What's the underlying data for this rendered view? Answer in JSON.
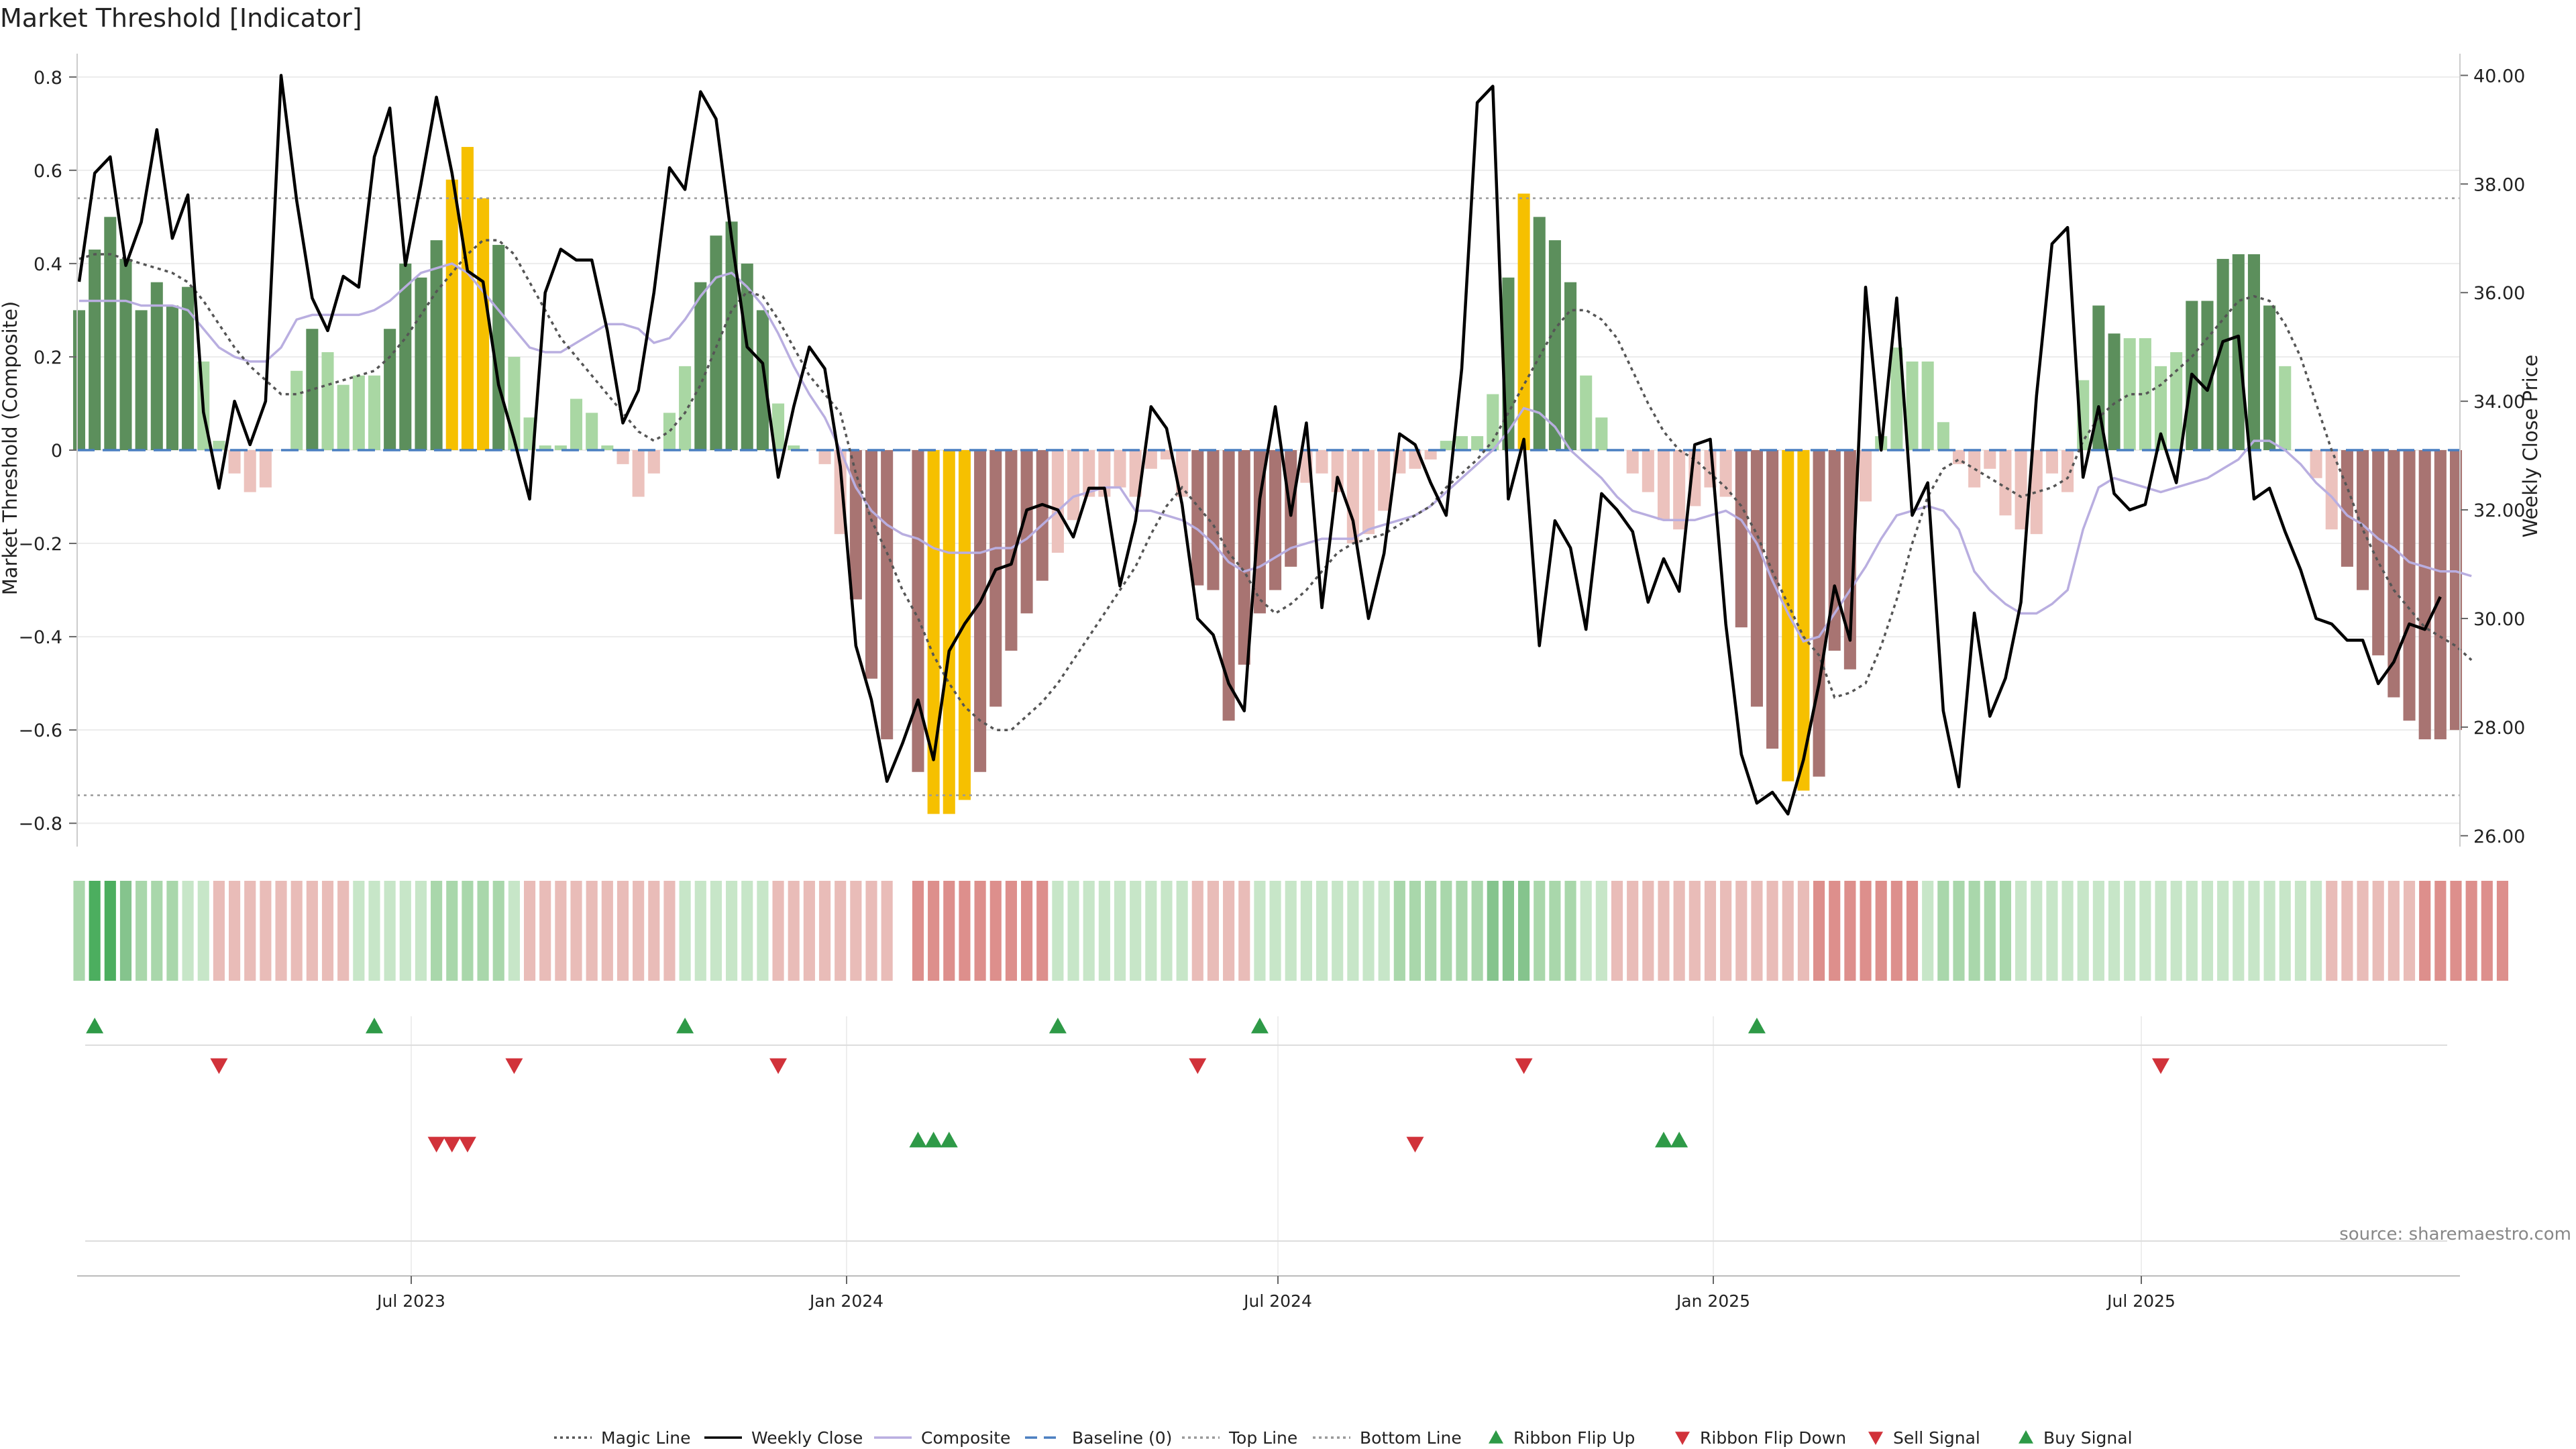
{
  "chart_data": {
    "type": "bar",
    "title": "Market Threshold [Indicator]",
    "ylabel": "Market Threshold (Composite)",
    "y2label": "Weekly Close Price",
    "ylim": [
      -0.85,
      0.85
    ],
    "y2lim": [
      25.8,
      40.4
    ],
    "yticks": [
      "0.8",
      "0.6",
      "0.4",
      "0.2",
      "0",
      "−0.2",
      "−0.4",
      "−0.6",
      "−0.8"
    ],
    "y2ticks": [
      "40.00",
      "38.00",
      "36.00",
      "34.00",
      "32.00",
      "30.00",
      "28.00",
      "26.00"
    ],
    "xticks": [
      "Jul 2023",
      "Jan 2024",
      "Jul 2024",
      "Jan 2025",
      "Jul 2025"
    ],
    "top_line": 0.54,
    "bottom_line": -0.74,
    "source": "source: sharemaestro.com",
    "legend": [
      {
        "label": "Magic Line",
        "kind": "dotted",
        "color": "#555555"
      },
      {
        "label": "Weekly Close",
        "kind": "solid",
        "color": "#000000"
      },
      {
        "label": "Composite",
        "kind": "solid",
        "color": "#b9aee0"
      },
      {
        "label": "Baseline (0)",
        "kind": "dashed",
        "color": "#4a7fc1"
      },
      {
        "label": "Top Line",
        "kind": "dotted",
        "color": "#999999"
      },
      {
        "label": "Bottom Line",
        "kind": "dotted",
        "color": "#999999"
      },
      {
        "label": "Ribbon Flip Up",
        "kind": "tri-up",
        "color": "#2e9a47"
      },
      {
        "label": "Ribbon Flip Down",
        "kind": "tri-down",
        "color": "#d1323a"
      },
      {
        "label": "Sell Signal",
        "kind": "tri-down",
        "color": "#d1323a"
      },
      {
        "label": "Buy Signal",
        "kind": "tri-up",
        "color": "#2e9a47"
      }
    ],
    "composite_bars": [
      0.3,
      0.43,
      0.5,
      0.41,
      0.3,
      0.36,
      0.31,
      0.35,
      0.19,
      0.02,
      -0.05,
      -0.09,
      -0.08,
      0.0,
      0.17,
      0.26,
      0.21,
      0.14,
      0.16,
      0.16,
      0.26,
      0.4,
      0.37,
      0.45,
      0.58,
      0.65,
      0.54,
      0.44,
      0.2,
      0.07,
      0.01,
      0.01,
      0.11,
      0.08,
      0.01,
      -0.03,
      -0.1,
      -0.05,
      0.08,
      0.18,
      0.36,
      0.46,
      0.49,
      0.4,
      0.3,
      0.1,
      0.01,
      0.0,
      -0.03,
      -0.18,
      -0.32,
      -0.49,
      -0.62,
      0.0,
      -0.69,
      -0.78,
      -0.78,
      -0.75,
      -0.69,
      -0.55,
      -0.43,
      -0.35,
      -0.28,
      -0.22,
      -0.15,
      -0.1,
      -0.1,
      -0.08,
      -0.1,
      -0.04,
      -0.02,
      -0.1,
      -0.29,
      -0.3,
      -0.58,
      -0.46,
      -0.35,
      -0.3,
      -0.25,
      -0.07,
      -0.05,
      -0.09,
      -0.2,
      -0.18,
      -0.13,
      -0.05,
      -0.04,
      -0.02,
      0.02,
      0.03,
      0.03,
      0.12,
      0.37,
      0.55,
      0.5,
      0.45,
      0.36,
      0.16,
      0.07,
      0.0,
      -0.05,
      -0.09,
      -0.15,
      -0.17,
      -0.12,
      -0.08,
      -0.1,
      -0.38,
      -0.55,
      -0.64,
      -0.71,
      -0.73,
      -0.7,
      -0.43,
      -0.47,
      -0.11,
      0.03,
      0.22,
      0.19,
      0.19,
      0.06,
      -0.03,
      -0.08,
      -0.04,
      -0.14,
      -0.17,
      -0.18,
      -0.05,
      -0.09,
      0.15,
      0.31,
      0.25,
      0.24,
      0.24,
      0.18,
      0.21,
      0.32,
      0.32,
      0.41,
      0.42,
      0.42,
      0.31,
      0.18,
      0.0,
      -0.06,
      -0.17,
      -0.25,
      -0.3,
      -0.44,
      -0.53,
      -0.58,
      -0.62,
      -0.62,
      -0.6
    ],
    "weekly_close": [
      36.2,
      38.2,
      38.5,
      36.5,
      37.3,
      39.0,
      37.0,
      37.8,
      33.8,
      32.4,
      34.0,
      33.2,
      34.0,
      40.0,
      37.7,
      35.9,
      35.3,
      36.3,
      36.1,
      38.5,
      39.4,
      36.5,
      38.0,
      39.6,
      38.2,
      36.4,
      36.2,
      34.3,
      33.3,
      32.2,
      36.0,
      36.8,
      36.6,
      36.6,
      35.3,
      33.6,
      34.2,
      36.0,
      38.3,
      37.9,
      39.7,
      39.2,
      37.0,
      35.0,
      34.7,
      32.6,
      33.9,
      35.0,
      34.6,
      32.8,
      29.5,
      28.5,
      27.0,
      27.7,
      28.5,
      27.4,
      29.4,
      29.9,
      30.3,
      30.9,
      31.0,
      32.0,
      32.1,
      32.0,
      31.5,
      32.4,
      32.4,
      30.6,
      31.8,
      33.9,
      33.5,
      32.1,
      30.0,
      29.7,
      28.8,
      28.3,
      32.2,
      33.9,
      31.9,
      33.6,
      30.2,
      32.6,
      31.8,
      30.0,
      31.2,
      33.4,
      33.2,
      32.5,
      31.9,
      34.6,
      39.5,
      39.8,
      32.2,
      33.3,
      29.5,
      31.8,
      31.3,
      29.8,
      32.3,
      32.0,
      31.6,
      30.3,
      31.1,
      30.5,
      33.2,
      33.3,
      29.9,
      27.5,
      26.6,
      26.8,
      26.4,
      27.4,
      28.8,
      30.6,
      29.6,
      36.1,
      33.1,
      35.9,
      31.9,
      32.5,
      28.3,
      26.9,
      30.1,
      28.2,
      28.9,
      30.3,
      34.1,
      36.9,
      37.2,
      32.6,
      33.9,
      32.3,
      32.0,
      32.1,
      33.4,
      32.5,
      34.5,
      34.2,
      35.1,
      35.2,
      32.2,
      32.4,
      31.6,
      30.9,
      30.0,
      29.9,
      29.6,
      29.6,
      28.8,
      29.2,
      29.9,
      29.8,
      30.4
    ],
    "magic_line": [
      0.41,
      0.42,
      0.42,
      0.41,
      0.4,
      0.39,
      0.38,
      0.36,
      0.32,
      0.27,
      0.22,
      0.18,
      0.15,
      0.12,
      0.12,
      0.13,
      0.14,
      0.15,
      0.16,
      0.17,
      0.2,
      0.24,
      0.29,
      0.34,
      0.38,
      0.42,
      0.45,
      0.45,
      0.42,
      0.36,
      0.3,
      0.24,
      0.2,
      0.16,
      0.12,
      0.08,
      0.04,
      0.02,
      0.04,
      0.08,
      0.14,
      0.22,
      0.3,
      0.34,
      0.33,
      0.28,
      0.22,
      0.16,
      0.12,
      0.08,
      -0.05,
      -0.15,
      -0.22,
      -0.3,
      -0.36,
      -0.44,
      -0.5,
      -0.55,
      -0.58,
      -0.6,
      -0.6,
      -0.57,
      -0.54,
      -0.5,
      -0.45,
      -0.4,
      -0.35,
      -0.3,
      -0.25,
      -0.18,
      -0.12,
      -0.08,
      -0.12,
      -0.16,
      -0.22,
      -0.26,
      -0.32,
      -0.35,
      -0.33,
      -0.3,
      -0.26,
      -0.22,
      -0.2,
      -0.19,
      -0.18,
      -0.16,
      -0.14,
      -0.12,
      -0.08,
      -0.05,
      -0.02,
      0.02,
      0.08,
      0.14,
      0.2,
      0.26,
      0.3,
      0.3,
      0.28,
      0.24,
      0.17,
      0.1,
      0.04,
      0.0,
      -0.02,
      -0.05,
      -0.08,
      -0.12,
      -0.18,
      -0.26,
      -0.33,
      -0.4,
      -0.44,
      -0.53,
      -0.52,
      -0.5,
      -0.42,
      -0.32,
      -0.2,
      -0.1,
      -0.04,
      -0.02,
      -0.04,
      -0.06,
      -0.08,
      -0.1,
      -0.09,
      -0.08,
      -0.06,
      0.02,
      0.07,
      0.1,
      0.12,
      0.12,
      0.14,
      0.17,
      0.2,
      0.24,
      0.28,
      0.32,
      0.33,
      0.32,
      0.27,
      0.2,
      0.1,
      0.0,
      -0.08,
      -0.17,
      -0.24,
      -0.3,
      -0.34,
      -0.38,
      -0.4,
      -0.42,
      -0.45
    ],
    "composite_line": [
      0.32,
      0.32,
      0.32,
      0.32,
      0.31,
      0.31,
      0.31,
      0.3,
      0.26,
      0.22,
      0.2,
      0.19,
      0.19,
      0.22,
      0.28,
      0.29,
      0.29,
      0.29,
      0.29,
      0.3,
      0.32,
      0.35,
      0.38,
      0.39,
      0.4,
      0.38,
      0.34,
      0.3,
      0.26,
      0.22,
      0.21,
      0.21,
      0.23,
      0.25,
      0.27,
      0.27,
      0.26,
      0.23,
      0.24,
      0.28,
      0.33,
      0.37,
      0.38,
      0.35,
      0.31,
      0.25,
      0.18,
      0.12,
      0.07,
      0.0,
      -0.08,
      -0.13,
      -0.16,
      -0.18,
      -0.19,
      -0.21,
      -0.22,
      -0.22,
      -0.22,
      -0.21,
      -0.21,
      -0.19,
      -0.16,
      -0.13,
      -0.1,
      -0.09,
      -0.08,
      -0.08,
      -0.13,
      -0.13,
      -0.14,
      -0.15,
      -0.17,
      -0.2,
      -0.24,
      -0.26,
      -0.25,
      -0.23,
      -0.21,
      -0.2,
      -0.19,
      -0.19,
      -0.19,
      -0.17,
      -0.16,
      -0.15,
      -0.14,
      -0.12,
      -0.09,
      -0.06,
      -0.03,
      0.0,
      0.04,
      0.09,
      0.08,
      0.05,
      0.0,
      -0.03,
      -0.06,
      -0.1,
      -0.13,
      -0.14,
      -0.15,
      -0.15,
      -0.15,
      -0.14,
      -0.13,
      -0.15,
      -0.2,
      -0.28,
      -0.35,
      -0.41,
      -0.4,
      -0.35,
      -0.3,
      -0.25,
      -0.19,
      -0.14,
      -0.13,
      -0.12,
      -0.13,
      -0.17,
      -0.26,
      -0.3,
      -0.33,
      -0.35,
      -0.35,
      -0.33,
      -0.3,
      -0.17,
      -0.08,
      -0.06,
      -0.07,
      -0.08,
      -0.09,
      -0.08,
      -0.07,
      -0.06,
      -0.04,
      -0.02,
      0.02,
      0.02,
      0.0,
      -0.03,
      -0.07,
      -0.1,
      -0.14,
      -0.16,
      -0.19,
      -0.21,
      -0.24,
      -0.25,
      -0.26,
      -0.26,
      -0.27
    ],
    "ribbon": [
      1,
      3,
      3,
      2,
      1,
      1,
      1,
      0,
      0,
      -1,
      -1,
      -1,
      -1,
      -1,
      -1,
      -1,
      -1,
      -1,
      0,
      0,
      0,
      0,
      0,
      1,
      1,
      1,
      1,
      1,
      0,
      -1,
      -1,
      -1,
      -1,
      -1,
      -1,
      -1,
      -1,
      -1,
      -1,
      0,
      0,
      0,
      0,
      0,
      0,
      -1,
      -1,
      -1,
      -1,
      -1,
      -1,
      -1,
      -1,
      9,
      -2,
      -2,
      -2,
      -2,
      -2,
      -2,
      -2,
      -2,
      -2,
      0,
      0,
      0,
      0,
      0,
      0,
      0,
      0,
      0,
      -1,
      -1,
      -1,
      -1,
      0,
      0,
      0,
      0,
      0,
      0,
      0,
      0,
      0,
      1,
      1,
      1,
      1,
      1,
      1,
      2,
      2,
      2,
      1,
      1,
      1,
      0,
      0,
      -1,
      -1,
      -1,
      -1,
      -1,
      -1,
      -1,
      -1,
      -1,
      -1,
      -1,
      -1,
      -1,
      -2,
      -2,
      -2,
      -2,
      -2,
      -2,
      -2,
      0,
      1,
      1,
      1,
      1,
      1,
      0,
      0,
      0,
      0,
      0,
      0,
      0,
      0,
      0,
      0,
      0,
      0,
      0,
      0,
      0,
      0,
      0,
      0,
      0,
      0,
      -1,
      -1,
      -1,
      -1,
      -1,
      -1,
      -2,
      -2,
      -2,
      -2,
      -2,
      -2
    ],
    "ribbon_flip_up": [
      1,
      19,
      39,
      63,
      76,
      108
    ],
    "ribbon_flip_down": [
      9,
      28,
      45,
      72,
      93,
      134
    ],
    "sell_signals": [
      23,
      24,
      25,
      86
    ],
    "buy_signals": [
      54,
      55,
      56,
      102,
      103
    ]
  },
  "colors": {
    "bar_pos_strong": "#5c8f5c",
    "bar_pos_light": "#a9d7a3",
    "bar_neg_strong": "#a87472",
    "bar_neg_light": "#ecc2bd",
    "bar_extreme": "#f6c000",
    "up_marker": "#2e9a47",
    "down_marker": "#d1323a"
  }
}
